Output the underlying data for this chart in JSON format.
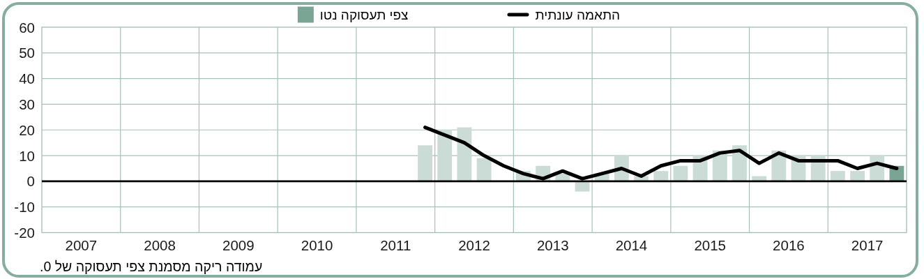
{
  "chart_data": {
    "type": "bar",
    "x": [
      2011.875,
      2012.125,
      2012.375,
      2012.625,
      2012.875,
      2013.125,
      2013.375,
      2013.625,
      2013.875,
      2014.125,
      2014.375,
      2014.625,
      2014.875,
      2015.125,
      2015.375,
      2015.625,
      2015.875,
      2016.125,
      2016.375,
      2016.625,
      2016.875,
      2017.125,
      2017.375,
      2017.625,
      2017.875
    ],
    "series": [
      {
        "name": "התאמה עונתית",
        "type": "line",
        "color": "#000000",
        "values": [
          21,
          18,
          15,
          10,
          6,
          3,
          1,
          4,
          1,
          3,
          5,
          2,
          6,
          8,
          8,
          11,
          12,
          7,
          11,
          8,
          8,
          8,
          5,
          7,
          5
        ]
      },
      {
        "name": "צפי תעסוקה נטו",
        "color": "#7aa595",
        "colors": [
          "#cbdcd6",
          "#cbdcd6",
          "#cbdcd6",
          "#cbdcd6",
          null,
          "#cbdcd6",
          "#cbdcd6",
          "#cbdcd6",
          "#cbdcd6",
          "#cbdcd6",
          "#cbdcd6",
          "#cbdcd6",
          "#cbdcd6",
          "#cbdcd6",
          "#cbdcd6",
          "#cbdcd6",
          "#cbdcd6",
          "#cbdcd6",
          "#cbdcd6",
          "#cbdcd6",
          "#cbdcd6",
          "#cbdcd6",
          "#cbdcd6",
          "#cbdcd6",
          "#7aa595"
        ],
        "values": [
          14,
          20,
          21,
          9,
          0,
          4,
          6,
          3,
          -4,
          3,
          10,
          2,
          4,
          6,
          10,
          12,
          14,
          2,
          12,
          10,
          10,
          4,
          4,
          10,
          6
        ]
      }
    ],
    "xlim": [
      2007,
      2018
    ],
    "xticks": [
      {
        "value": 2007.5,
        "label": "2007"
      },
      {
        "value": 2008,
        "label": null
      },
      {
        "value": 2008.5,
        "label": "2008"
      },
      {
        "value": 2009,
        "label": null
      },
      {
        "value": 2009.5,
        "label": "2009"
      },
      {
        "value": 2010,
        "label": null
      },
      {
        "value": 2010.5,
        "label": "2010"
      },
      {
        "value": 2011,
        "label": null
      },
      {
        "value": 2011.5,
        "label": "2011"
      },
      {
        "value": 2012,
        "label": null
      },
      {
        "value": 2012.5,
        "label": "2012"
      },
      {
        "value": 2013,
        "label": null
      },
      {
        "value": 2013.5,
        "label": "2013"
      },
      {
        "value": 2014,
        "label": null
      },
      {
        "value": 2014.5,
        "label": "2014"
      },
      {
        "value": 2015,
        "label": null
      },
      {
        "value": 2015.5,
        "label": "2015"
      },
      {
        "value": 2016,
        "label": null
      },
      {
        "value": 2016.5,
        "label": "2016"
      },
      {
        "value": 2017,
        "label": null
      },
      {
        "value": 2017.5,
        "label": "2017"
      }
    ],
    "ylim": [
      -20,
      60
    ],
    "yticks": [
      -20,
      -10,
      0,
      10,
      20,
      30,
      40,
      50,
      60
    ],
    "grid": true,
    "legend": "top",
    "ref_lines": [
      {
        "axis": "y",
        "value": 0,
        "color": "#000000"
      }
    ],
    "annotations": [
      "עמודה ריקה מסמנת צפי תעסוקה של 0."
    ]
  }
}
